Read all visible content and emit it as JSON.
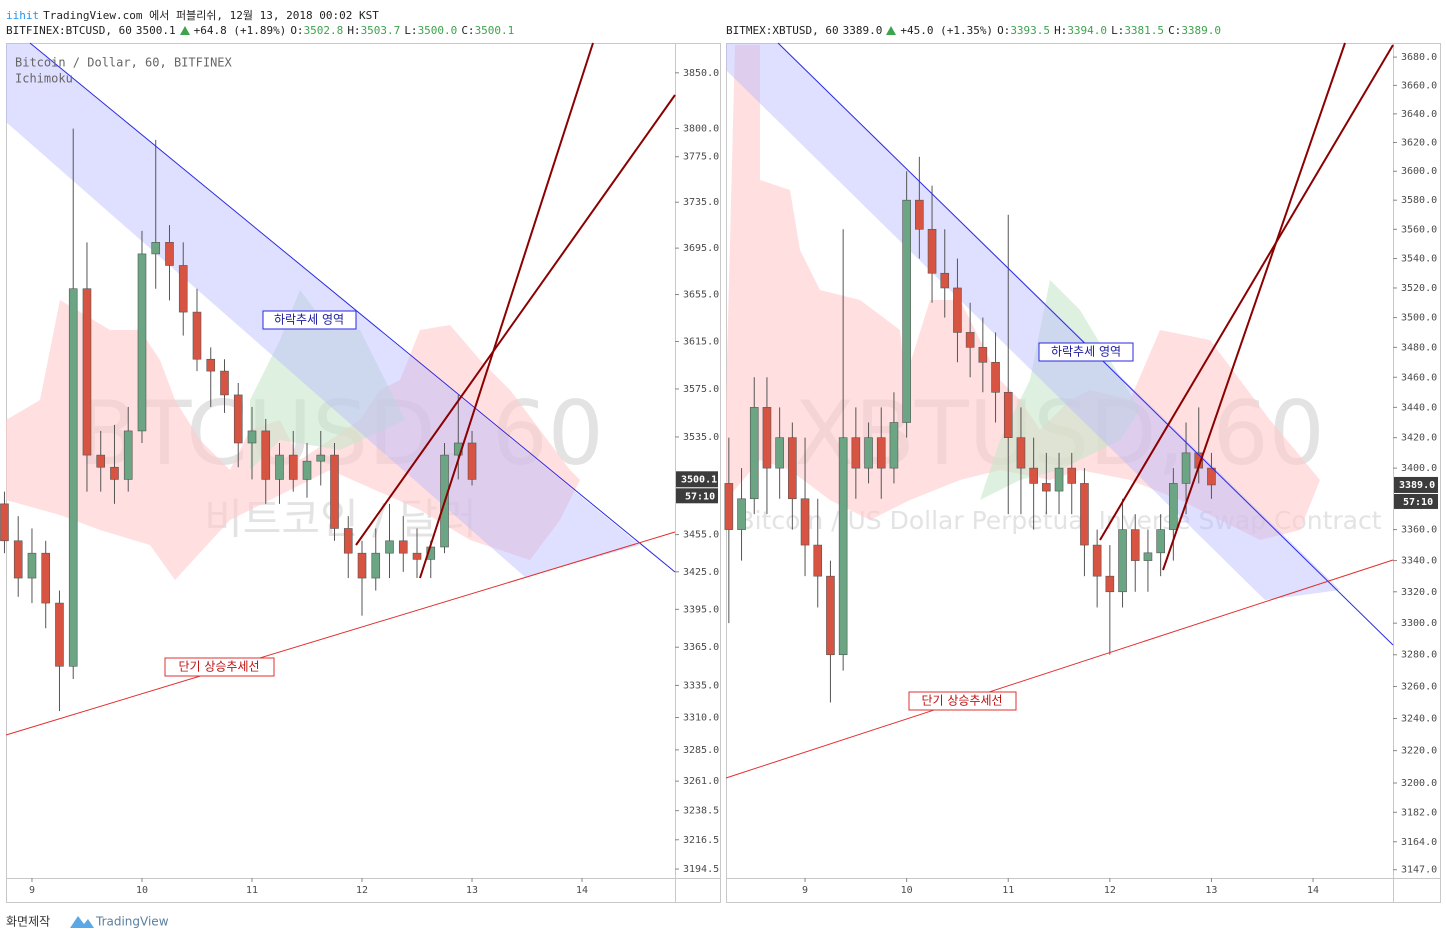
{
  "header": {
    "author": "iihit",
    "text": "TradingView.com 에서 퍼블리쉬, 12월 13, 2018 00:02 KST"
  },
  "footer": {
    "label": "화면제작",
    "brand": "TradingView"
  },
  "chart_data": [
    {
      "type": "candlestick",
      "symbol": "BITFINEX:BTCUSD, 60",
      "last": "3500.1",
      "change": "+64.8 (+1.89%)",
      "ohlc": [
        {
          "name": "O:",
          "value": "3502.8"
        },
        {
          "name": "H:",
          "value": "3503.7"
        },
        {
          "name": "L:",
          "value": "3500.0"
        },
        {
          "name": "C:",
          "value": "3500.1"
        }
      ],
      "legend": [
        "Bitcoin / Dollar, 60, BITFINEX",
        "Ichimoku"
      ],
      "watermark": [
        "BTCUSD, 60",
        "비트코인 / 달러"
      ],
      "annotations": [
        "하락추세 영역",
        "단기 상승추세선"
      ],
      "price_tag": {
        "value": 3500.1,
        "label": "3500.1"
      },
      "countdown": "57:10",
      "log": true,
      "up_color": "#6ba583",
      "down_color": "#d75442",
      "xlim": [
        8.764,
        14.845
      ],
      "xticks": [
        9,
        10,
        11,
        12,
        13,
        14
      ],
      "ylim": [
        3187.8,
        3877
      ],
      "yticks": [
        {
          "value": 3850,
          "label": "3850.0"
        },
        {
          "value": 3800,
          "label": "3800.0"
        },
        {
          "value": 3775,
          "label": "3775.0"
        },
        {
          "value": 3735,
          "label": "3735.0"
        },
        {
          "value": 3695,
          "label": "3695.0"
        },
        {
          "value": 3655,
          "label": "3655.0"
        },
        {
          "value": 3615,
          "label": "3615.0"
        },
        {
          "value": 3575,
          "label": "3575.0"
        },
        {
          "value": 3535,
          "label": "3535.0"
        },
        {
          "value": 3455,
          "label": "3455.0"
        },
        {
          "value": 3425,
          "label": "3425.0"
        },
        {
          "value": 3395,
          "label": "3395.0"
        },
        {
          "value": 3365,
          "label": "3365.0"
        },
        {
          "value": 3335,
          "label": "3335.0"
        },
        {
          "value": 3310,
          "label": "3310.0"
        },
        {
          "value": 3285,
          "label": "3285.0"
        },
        {
          "value": 3261,
          "label": "3261.0"
        },
        3238.5,
        3216.5,
        3194.5
      ],
      "x": [
        8.75,
        8.875,
        9.0,
        9.125,
        9.25,
        9.375,
        9.5,
        9.625,
        9.75,
        9.875,
        10.0,
        10.125,
        10.25,
        10.375,
        10.5,
        10.625,
        10.75,
        10.875,
        11.0,
        11.125,
        11.25,
        11.375,
        11.5,
        11.625,
        11.75,
        11.875,
        12.0,
        12.125,
        12.25,
        12.375,
        12.5,
        12.625,
        12.75,
        12.875,
        13.0
      ],
      "open": [
        3480,
        3450,
        3420,
        3440,
        3400,
        3350,
        3660,
        3520,
        3510,
        3500,
        3540,
        3690,
        3700,
        3680,
        3640,
        3600,
        3590,
        3570,
        3530,
        3540,
        3500,
        3520,
        3500,
        3515,
        3520,
        3460,
        3440,
        3420,
        3440,
        3450,
        3440,
        3435,
        3445,
        3520,
        3530
      ],
      "high": [
        3490,
        3470,
        3460,
        3450,
        3410,
        3800,
        3700,
        3540,
        3545,
        3560,
        3710,
        3790,
        3715,
        3700,
        3660,
        3610,
        3600,
        3580,
        3560,
        3550,
        3530,
        3540,
        3530,
        3540,
        3530,
        3470,
        3450,
        3460,
        3480,
        3470,
        3460,
        3450,
        3530,
        3570,
        3540
      ],
      "low": [
        3440,
        3405,
        3400,
        3380,
        3315,
        3340,
        3490,
        3490,
        3480,
        3490,
        3530,
        3660,
        3650,
        3620,
        3590,
        3560,
        3555,
        3510,
        3500,
        3480,
        3480,
        3490,
        3485,
        3495,
        3450,
        3420,
        3390,
        3410,
        3420,
        3425,
        3420,
        3420,
        3440,
        3500,
        3495
      ],
      "close": [
        3450,
        3420,
        3440,
        3400,
        3350,
        3660,
        3520,
        3510,
        3500,
        3540,
        3690,
        3700,
        3680,
        3640,
        3600,
        3590,
        3570,
        3530,
        3540,
        3500,
        3520,
        3500,
        3515,
        3520,
        3460,
        3440,
        3420,
        3440,
        3450,
        3440,
        3435,
        3445,
        3520,
        3530,
        3500
      ]
    },
    {
      "type": "candlestick",
      "symbol": "BITMEX:XBTUSD, 60",
      "last": "3389.0",
      "change": "+45.0 (+1.35%)",
      "ohlc": [
        {
          "name": "O:",
          "value": "3393.5"
        },
        {
          "name": "H:",
          "value": "3394.0"
        },
        {
          "name": "L:",
          "value": "3381.5"
        },
        {
          "name": "C:",
          "value": "3389.0"
        }
      ],
      "watermark": [
        "XBTUSD, 60",
        "Bitcoin / US Dollar Perpetual Inverse Swap Contract"
      ],
      "annotations": [
        "하락추세 영역",
        "단기 상승추세선"
      ],
      "price_tag": {
        "value": 3389,
        "label": "3389.0"
      },
      "countdown": "57:10",
      "log": true,
      "up_color": "#6ba583",
      "down_color": "#d75442",
      "xlim": [
        8.222,
        14.787
      ],
      "xticks": [
        9,
        10,
        11,
        12,
        13,
        14
      ],
      "ylim": [
        3142,
        3690
      ],
      "yticks": [
        {
          "value": 3680,
          "label": "3680.0"
        },
        {
          "value": 3660,
          "label": "3660.0"
        },
        {
          "value": 3640,
          "label": "3640.0"
        },
        {
          "value": 3620,
          "label": "3620.0"
        },
        {
          "value": 3600,
          "label": "3600.0"
        },
        {
          "value": 3580,
          "label": "3580.0"
        },
        {
          "value": 3560,
          "label": "3560.0"
        },
        {
          "value": 3540,
          "label": "3540.0"
        },
        {
          "value": 3520,
          "label": "3520.0"
        },
        {
          "value": 3500,
          "label": "3500.0"
        },
        {
          "value": 3480,
          "label": "3480.0"
        },
        {
          "value": 3460,
          "label": "3460.0"
        },
        {
          "value": 3440,
          "label": "3440.0"
        },
        {
          "value": 3420,
          "label": "3420.0"
        },
        {
          "value": 3400,
          "label": "3400.0"
        },
        {
          "value": 3360,
          "label": "3360.0"
        },
        {
          "value": 3340,
          "label": "3340.0"
        },
        {
          "value": 3320,
          "label": "3320.0"
        },
        {
          "value": 3300,
          "label": "3300.0"
        },
        {
          "value": 3280,
          "label": "3280.0"
        },
        {
          "value": 3260,
          "label": "3260.0"
        },
        {
          "value": 3240,
          "label": "3240.0"
        },
        {
          "value": 3220,
          "label": "3220.0"
        },
        {
          "value": 3200,
          "label": "3200.0"
        },
        {
          "value": 3182,
          "label": "3182.0"
        },
        {
          "value": 3164,
          "label": "3164.0"
        },
        {
          "value": 3147,
          "label": "3147.0"
        }
      ],
      "x": [
        8.25,
        8.375,
        8.5,
        8.625,
        8.75,
        8.875,
        9.0,
        9.125,
        9.25,
        9.375,
        9.5,
        9.625,
        9.75,
        9.875,
        10.0,
        10.125,
        10.25,
        10.375,
        10.5,
        10.625,
        10.75,
        10.875,
        11.0,
        11.125,
        11.25,
        11.375,
        11.5,
        11.625,
        11.75,
        11.875,
        12.0,
        12.125,
        12.25,
        12.375,
        12.5,
        12.625,
        12.75,
        12.875,
        13.0
      ],
      "open": [
        3390,
        3360,
        3380,
        3440,
        3400,
        3420,
        3380,
        3350,
        3330,
        3280,
        3420,
        3400,
        3420,
        3400,
        3430,
        3580,
        3560,
        3530,
        3520,
        3490,
        3480,
        3470,
        3450,
        3420,
        3400,
        3390,
        3385,
        3400,
        3390,
        3350,
        3330,
        3320,
        3360,
        3340,
        3345,
        3360,
        3390,
        3410,
        3400
      ],
      "high": [
        3420,
        3400,
        3460,
        3460,
        3440,
        3430,
        3420,
        3380,
        3340,
        3560,
        3440,
        3430,
        3440,
        3450,
        3600,
        3610,
        3590,
        3560,
        3540,
        3510,
        3500,
        3490,
        3570,
        3440,
        3420,
        3410,
        3410,
        3410,
        3400,
        3360,
        3350,
        3380,
        3370,
        3360,
        3370,
        3400,
        3430,
        3440,
        3410
      ],
      "low": [
        3300,
        3340,
        3370,
        3370,
        3380,
        3360,
        3330,
        3310,
        3250,
        3270,
        3380,
        3390,
        3380,
        3390,
        3420,
        3540,
        3510,
        3500,
        3470,
        3460,
        3450,
        3430,
        3370,
        3370,
        3360,
        3370,
        3370,
        3370,
        3330,
        3310,
        3280,
        3310,
        3320,
        3320,
        3330,
        3340,
        3370,
        3390,
        3380
      ],
      "close": [
        3360,
        3380,
        3440,
        3400,
        3420,
        3380,
        3350,
        3330,
        3280,
        3420,
        3400,
        3420,
        3400,
        3430,
        3580,
        3560,
        3530,
        3520,
        3490,
        3480,
        3470,
        3450,
        3420,
        3400,
        3390,
        3385,
        3400,
        3390,
        3350,
        3330,
        3320,
        3360,
        3340,
        3345,
        3360,
        3390,
        3410,
        3400,
        3389
      ]
    }
  ]
}
